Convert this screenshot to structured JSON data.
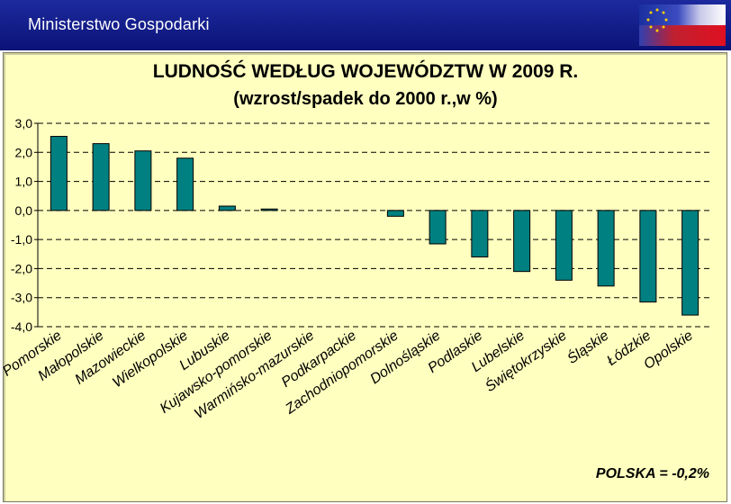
{
  "header": {
    "org_name": "Ministerstwo Gospodarki",
    "flag": "eu-poland-flag",
    "colors": {
      "bar_top": "#1d2a9e",
      "bar_bottom": "#0b1377"
    }
  },
  "chart_data": {
    "type": "bar",
    "title": "LUDNOŚĆ WEDŁUG WOJEWÓDZTW W 2009 R.",
    "subtitle": "(wzrost/spadek do 2000 r.,w %)",
    "categories": [
      "Pomorskie",
      "Małopolskie",
      "Mazowieckie",
      "Wielkopolskie",
      "Lubuskie",
      "Kujawsko-pomorskie",
      "Warmińsko-mazurskie",
      "Podkarpackie",
      "Zachodniopomorskie",
      "Dolnośląskie",
      "Podlaskie",
      "Lubelskie",
      "Świętokrzyskie",
      "Śląskie",
      "Łódzkie",
      "Opolskie"
    ],
    "values": [
      2.55,
      2.3,
      2.05,
      1.8,
      0.15,
      0.05,
      0.0,
      0.0,
      -0.2,
      -1.15,
      -1.6,
      -2.1,
      -2.4,
      -2.6,
      -3.15,
      -3.6
    ],
    "ylim": [
      -4.0,
      3.0
    ],
    "yticks": [
      "3,0",
      "2,0",
      "1,0",
      "0,0",
      "-1,0",
      "-2,0",
      "-3,0",
      "-4,0"
    ],
    "ytick_values": [
      3,
      2,
      1,
      0,
      -1,
      -2,
      -3,
      -4
    ],
    "grid": "dashed at each y tick",
    "bar_color": "#008080",
    "background": "#ffffbf",
    "annotation": "POLSKA = -0,2%"
  }
}
